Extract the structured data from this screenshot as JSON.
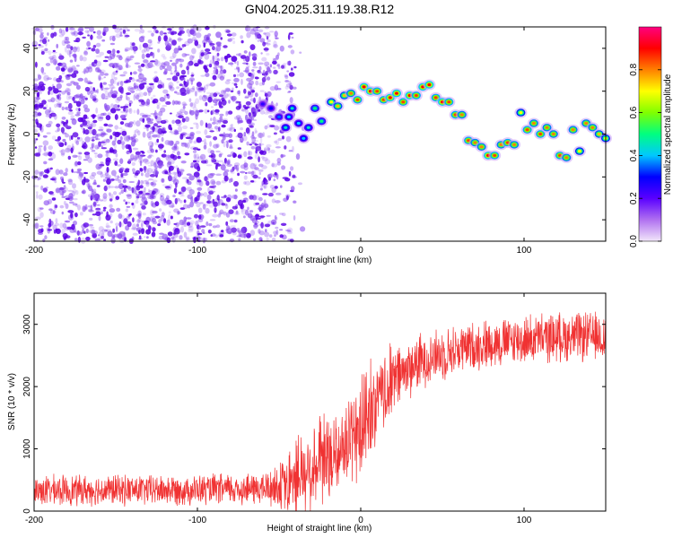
{
  "title": "GN04.2025.311.19.38.R12",
  "chart_data": [
    {
      "type": "heatmap",
      "name": "spectrogram",
      "xlabel": "Height of straight line (km)",
      "ylabel": "Frequency (Hz)",
      "xlim": [
        -200,
        150
      ],
      "ylim": [
        -50,
        50
      ],
      "xticks": [
        -200,
        -100,
        0,
        100
      ],
      "xtick_labels": [
        "-200",
        "-100",
        "0",
        "100"
      ],
      "yticks": [
        -40,
        -20,
        0,
        20,
        40
      ],
      "ytick_labels": [
        "-40",
        "-20",
        "0",
        "20",
        "40"
      ],
      "colorbar": {
        "label": "Normalized spectral amplitude",
        "range": [
          0,
          1
        ],
        "ticks": [
          0.0,
          0.2,
          0.4,
          0.6,
          0.8
        ],
        "tick_labels": [
          "0.0",
          "0.2",
          "0.4",
          "0.6",
          "0.8"
        ],
        "colors": [
          "#f2e6fa",
          "#b070f0",
          "#5a00ff",
          "#0000ff",
          "#00c8ff",
          "#00ff80",
          "#80ff00",
          "#ffff00",
          "#ff8000",
          "#ff0000",
          "#ff0080"
        ]
      },
      "noise_region_km": [
        -200,
        -35
      ],
      "noise_color": "#6a1ee0",
      "ridge": [
        {
          "x": -60,
          "f": 14,
          "a": 0.25
        },
        {
          "x": -55,
          "f": 12,
          "a": 0.3
        },
        {
          "x": -50,
          "f": 8,
          "a": 0.35
        },
        {
          "x": -46,
          "f": 3,
          "a": 0.45
        },
        {
          "x": -44,
          "f": 8,
          "a": 0.4
        },
        {
          "x": -42,
          "f": 12,
          "a": 0.45
        },
        {
          "x": -38,
          "f": 5,
          "a": 0.4
        },
        {
          "x": -35,
          "f": -2,
          "a": 0.4
        },
        {
          "x": -32,
          "f": 3,
          "a": 0.45
        },
        {
          "x": -28,
          "f": 12,
          "a": 0.5
        },
        {
          "x": -24,
          "f": 6,
          "a": 0.5
        },
        {
          "x": -18,
          "f": 15,
          "a": 0.7
        },
        {
          "x": -14,
          "f": 13,
          "a": 0.75
        },
        {
          "x": -10,
          "f": 18,
          "a": 0.75
        },
        {
          "x": -6,
          "f": 19,
          "a": 0.8
        },
        {
          "x": -2,
          "f": 16,
          "a": 0.85
        },
        {
          "x": 2,
          "f": 22,
          "a": 0.9
        },
        {
          "x": 6,
          "f": 20,
          "a": 0.9
        },
        {
          "x": 10,
          "f": 20,
          "a": 0.85
        },
        {
          "x": 14,
          "f": 16,
          "a": 0.85
        },
        {
          "x": 18,
          "f": 17,
          "a": 0.9
        },
        {
          "x": 22,
          "f": 19,
          "a": 0.9
        },
        {
          "x": 26,
          "f": 15,
          "a": 0.85
        },
        {
          "x": 30,
          "f": 18,
          "a": 0.9
        },
        {
          "x": 34,
          "f": 18,
          "a": 0.85
        },
        {
          "x": 38,
          "f": 22,
          "a": 0.9
        },
        {
          "x": 42,
          "f": 23,
          "a": 0.9
        },
        {
          "x": 46,
          "f": 17,
          "a": 0.85
        },
        {
          "x": 50,
          "f": 15,
          "a": 0.9
        },
        {
          "x": 54,
          "f": 15,
          "a": 0.85
        },
        {
          "x": 58,
          "f": 9,
          "a": 0.85
        },
        {
          "x": 62,
          "f": 9,
          "a": 0.8
        },
        {
          "x": 66,
          "f": -3,
          "a": 0.85
        },
        {
          "x": 70,
          "f": -4,
          "a": 0.8
        },
        {
          "x": 74,
          "f": -6,
          "a": 0.8
        },
        {
          "x": 78,
          "f": -10,
          "a": 0.9
        },
        {
          "x": 82,
          "f": -10,
          "a": 0.85
        },
        {
          "x": 86,
          "f": -5,
          "a": 0.8
        },
        {
          "x": 90,
          "f": -4,
          "a": 0.85
        },
        {
          "x": 94,
          "f": -5,
          "a": 0.8
        },
        {
          "x": 98,
          "f": 10,
          "a": 0.7
        },
        {
          "x": 102,
          "f": 2,
          "a": 0.85
        },
        {
          "x": 106,
          "f": 5,
          "a": 0.8
        },
        {
          "x": 110,
          "f": 0,
          "a": 0.85
        },
        {
          "x": 114,
          "f": 3,
          "a": 0.8
        },
        {
          "x": 118,
          "f": 0,
          "a": 0.8
        },
        {
          "x": 122,
          "f": -10,
          "a": 0.85
        },
        {
          "x": 126,
          "f": -11,
          "a": 0.8
        },
        {
          "x": 130,
          "f": 2,
          "a": 0.8
        },
        {
          "x": 134,
          "f": -8,
          "a": 0.7
        },
        {
          "x": 138,
          "f": 5,
          "a": 0.8
        },
        {
          "x": 142,
          "f": 3,
          "a": 0.8
        },
        {
          "x": 146,
          "f": 0,
          "a": 0.75
        },
        {
          "x": 150,
          "f": -2,
          "a": 0.7
        }
      ]
    },
    {
      "type": "line",
      "name": "snr",
      "xlabel": "Height of straight line (km)",
      "ylabel": "SNR (10 * v/v)",
      "xlim": [
        -200,
        150
      ],
      "ylim": [
        0,
        3500
      ],
      "xticks": [
        -200,
        -100,
        0,
        100
      ],
      "xtick_labels": [
        "-200",
        "-100",
        "0",
        "100"
      ],
      "yticks": [
        0,
        1000,
        2000,
        3000
      ],
      "ytick_labels": [
        "0",
        "1000",
        "2000",
        "3000"
      ],
      "color": "#f03232",
      "series": [
        {
          "name": "SNR",
          "profile_x": [
            -200,
            -150,
            -100,
            -60,
            -45,
            -40,
            -30,
            -20,
            -10,
            0,
            10,
            20,
            30,
            40,
            60,
            80,
            100,
            120,
            150
          ],
          "profile_y": [
            330,
            340,
            340,
            360,
            420,
            600,
            650,
            800,
            1000,
            1300,
            1700,
            2100,
            2300,
            2450,
            2600,
            2700,
            2750,
            2800,
            2800
          ],
          "noise_amplitude_y": [
            280,
            280,
            280,
            300,
            500,
            800,
            700,
            800,
            800,
            900,
            800,
            600,
            550,
            500,
            450,
            450,
            450,
            450,
            450
          ]
        }
      ]
    }
  ]
}
